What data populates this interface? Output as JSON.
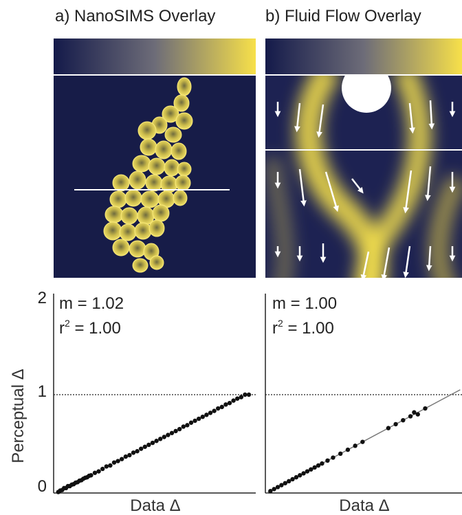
{
  "panels": [
    {
      "title": "a) NanoSIMS Overlay"
    },
    {
      "title": "b) Fluid Flow Overlay"
    }
  ],
  "colormap": {
    "low": "#141a4a",
    "mid": "#6d6c78",
    "high": "#f7e04a"
  },
  "chart_data": [
    {
      "type": "scatter",
      "title": "",
      "xlabel": "Data Δ",
      "ylabel": "Perceptual Δ",
      "ylim": [
        0,
        2
      ],
      "yticks": [
        "0",
        "1",
        "2"
      ],
      "reference_line_y": 1,
      "annotation": {
        "slope": "m = 1.02",
        "r_label": "r",
        "r_exp": "2",
        "r_value": " = 1.00"
      },
      "fit": {
        "slope": 1.02,
        "r2": 1.0
      },
      "points_x": [
        0.01,
        0.02,
        0.03,
        0.04,
        0.05,
        0.06,
        0.07,
        0.08,
        0.09,
        0.1,
        0.11,
        0.12,
        0.13,
        0.14,
        0.15,
        0.16,
        0.17,
        0.18,
        0.2,
        0.22,
        0.24,
        0.26,
        0.28,
        0.3,
        0.32,
        0.34,
        0.36,
        0.38,
        0.4,
        0.42,
        0.44,
        0.46,
        0.48,
        0.5,
        0.52,
        0.54,
        0.56,
        0.58,
        0.6,
        0.62,
        0.64,
        0.66,
        0.68,
        0.7,
        0.72,
        0.74,
        0.76,
        0.78,
        0.8,
        0.82,
        0.84,
        0.86,
        0.88,
        0.9,
        0.92,
        0.94,
        0.96,
        0.98,
        1.0
      ],
      "points_y": [
        0.01,
        0.025,
        0.03,
        0.05,
        0.05,
        0.07,
        0.07,
        0.085,
        0.09,
        0.105,
        0.11,
        0.125,
        0.13,
        0.145,
        0.155,
        0.16,
        0.175,
        0.18,
        0.205,
        0.22,
        0.245,
        0.27,
        0.28,
        0.31,
        0.325,
        0.345,
        0.37,
        0.385,
        0.41,
        0.425,
        0.45,
        0.47,
        0.49,
        0.51,
        0.53,
        0.55,
        0.57,
        0.59,
        0.61,
        0.63,
        0.65,
        0.675,
        0.69,
        0.715,
        0.735,
        0.755,
        0.775,
        0.795,
        0.815,
        0.835,
        0.86,
        0.875,
        0.9,
        0.915,
        0.94,
        0.96,
        0.975,
        1.0,
        1.0
      ]
    },
    {
      "type": "scatter",
      "title": "",
      "xlabel": "Data Δ",
      "ylabel": "",
      "ylim": [
        0,
        2
      ],
      "reference_line_y": 1,
      "annotation": {
        "slope": "m = 1.00",
        "r_label": "r",
        "r_exp": "2",
        "r_value": " = 1.00"
      },
      "fit": {
        "slope": 1.0,
        "r2": 1.0
      },
      "points_x": [
        0.02,
        0.04,
        0.06,
        0.08,
        0.1,
        0.12,
        0.14,
        0.16,
        0.18,
        0.2,
        0.22,
        0.24,
        0.26,
        0.28,
        0.3,
        0.33,
        0.36,
        0.4,
        0.44,
        0.48,
        0.52,
        0.66,
        0.7,
        0.74,
        0.78,
        0.8,
        0.82,
        0.86
      ],
      "points_y": [
        0.02,
        0.04,
        0.06,
        0.08,
        0.1,
        0.12,
        0.14,
        0.16,
        0.18,
        0.2,
        0.22,
        0.24,
        0.26,
        0.28,
        0.3,
        0.33,
        0.36,
        0.4,
        0.44,
        0.48,
        0.52,
        0.66,
        0.7,
        0.74,
        0.78,
        0.82,
        0.8,
        0.86
      ]
    }
  ]
}
